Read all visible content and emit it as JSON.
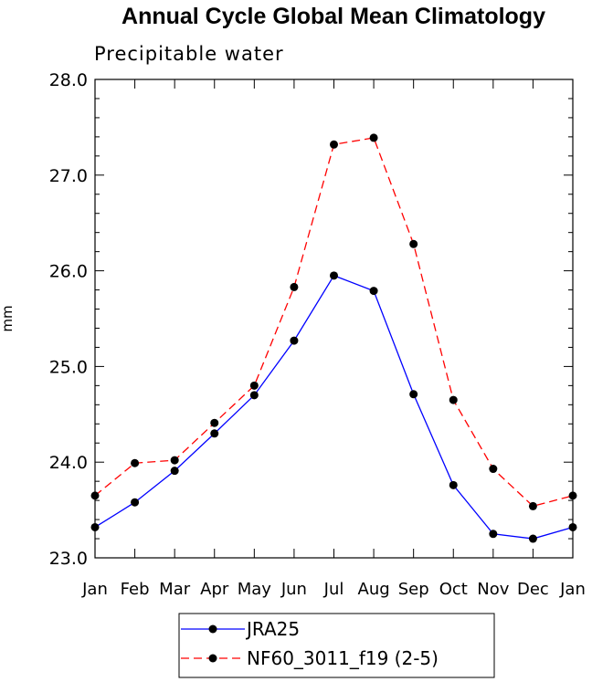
{
  "chart_data": {
    "type": "line",
    "title": "Annual Cycle Global Mean Climatology",
    "subtitle": "Precipitable water",
    "xlabel": "",
    "ylabel": "mm",
    "categories": [
      "Jan",
      "Feb",
      "Mar",
      "Apr",
      "May",
      "Jun",
      "Jul",
      "Aug",
      "Sep",
      "Oct",
      "Nov",
      "Dec",
      "Jan"
    ],
    "ylim": [
      23.0,
      28.0
    ],
    "yticks": [
      "23.0",
      "24.0",
      "25.0",
      "26.0",
      "27.0",
      "28.0"
    ],
    "series": [
      {
        "name": "JRA25",
        "color": "#0000ff",
        "dash": "solid",
        "marker": "filled-circle",
        "values": [
          23.32,
          23.58,
          23.91,
          24.3,
          24.7,
          25.27,
          25.95,
          25.79,
          24.71,
          23.76,
          23.25,
          23.2,
          23.32
        ]
      },
      {
        "name": "NF60_3011_f19 (2-5)",
        "color": "#ff0000",
        "dash": "dashed",
        "marker": "filled-circle",
        "values": [
          23.65,
          23.99,
          24.02,
          24.41,
          24.8,
          25.83,
          27.32,
          27.39,
          26.28,
          24.65,
          23.93,
          23.54,
          23.65
        ]
      }
    ],
    "grid": false,
    "legend_position": "bottom"
  }
}
